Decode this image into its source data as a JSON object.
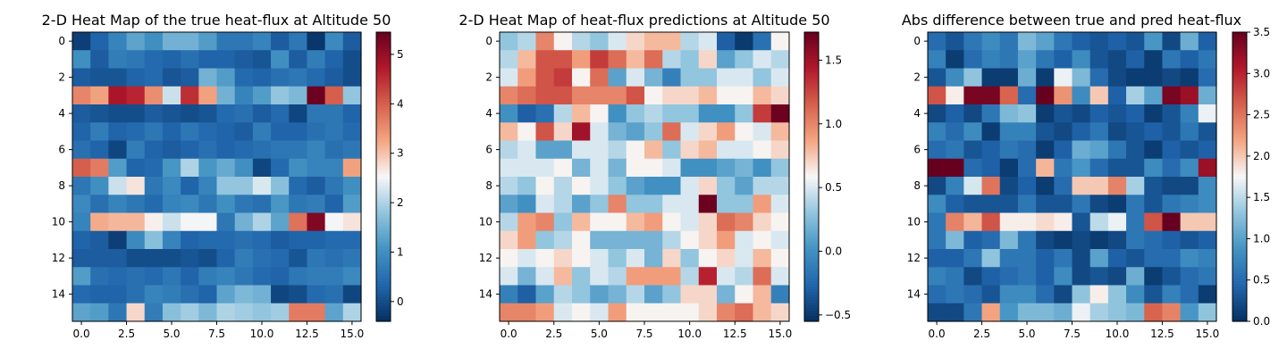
{
  "chart_data": [
    {
      "type": "heatmap",
      "title": "2-D Heat Map of the true heat-flux at Altitude 50",
      "colormap": "RdBu_r",
      "vmin": -0.4,
      "vmax": 5.45,
      "xlim": [
        -0.5,
        15.5
      ],
      "ylim": [
        15.5,
        -0.5
      ],
      "x_ticks": [
        "0.0",
        "2.5",
        "5.0",
        "7.5",
        "10.0",
        "12.5",
        "15.0"
      ],
      "y_ticks": [
        "0",
        "2",
        "4",
        "6",
        "8",
        "10",
        "12",
        "14"
      ],
      "colorbar_ticks": [
        "0",
        "1",
        "2",
        "3",
        "4",
        "5"
      ],
      "values": [
        [
          -0.2,
          0.3,
          0.8,
          1.3,
          1.0,
          1.5,
          1.5,
          1.2,
          0.6,
          0.6,
          0.8,
          0.2,
          0.6,
          -0.3,
          0.9,
          0.2
        ],
        [
          1.0,
          0.2,
          0.7,
          0.6,
          0.4,
          0.3,
          0.5,
          0.3,
          0.3,
          0.2,
          0.1,
          1.0,
          0.2,
          0.7,
          0.3,
          0.0
        ],
        [
          0.2,
          0.1,
          0.1,
          0.3,
          0.4,
          0.1,
          0.2,
          1.5,
          1.2,
          0.4,
          0.3,
          0.5,
          0.6,
          0.4,
          0.2,
          0.0
        ],
        [
          3.6,
          3.3,
          4.8,
          4.6,
          3.5,
          2.2,
          4.5,
          3.3,
          1.5,
          0.8,
          1.2,
          1.8,
          1.6,
          5.4,
          4.0,
          1.8
        ],
        [
          0.2,
          0.1,
          0.0,
          0.0,
          0.2,
          0.1,
          0.0,
          0.1,
          0.4,
          0.5,
          0.2,
          0.4,
          -0.1,
          0.6,
          0.6,
          0.3
        ],
        [
          0.3,
          0.7,
          0.3,
          0.4,
          0.6,
          0.3,
          0.6,
          0.4,
          0.3,
          0.2,
          0.7,
          0.3,
          0.3,
          0.5,
          0.6,
          0.4
        ],
        [
          0.5,
          0.3,
          -0.1,
          0.7,
          0.3,
          0.2,
          0.3,
          0.5,
          0.3,
          0.4,
          0.5,
          0.6,
          0.6,
          0.8,
          0.5,
          0.6
        ],
        [
          4.0,
          3.7,
          1.2,
          0.3,
          0.4,
          1.1,
          2.0,
          1.1,
          1.4,
          1.0,
          -0.1,
          0.4,
          1.0,
          0.8,
          0.8,
          3.3
        ],
        [
          0.6,
          1.0,
          2.2,
          2.7,
          0.6,
          0.9,
          0.3,
          0.8,
          1.8,
          1.8,
          2.3,
          1.7,
          0.4,
          0.2,
          0.6,
          1.0
        ],
        [
          0.9,
          0.5,
          0.8,
          0.6,
          0.4,
          0.8,
          0.9,
          0.6,
          1.0,
          0.6,
          0.5,
          1.1,
          0.6,
          0.7,
          0.3,
          1.2
        ],
        [
          0.8,
          3.2,
          3.1,
          3.1,
          2.6,
          2.2,
          2.5,
          2.5,
          0.6,
          1.5,
          2.0,
          1.3,
          3.8,
          5.2,
          2.5,
          2.7
        ],
        [
          0.3,
          0.2,
          -0.2,
          0.9,
          1.7,
          0.8,
          0.3,
          0.4,
          0.4,
          0.5,
          0.4,
          0.2,
          0.3,
          0.3,
          0.4,
          0.4
        ],
        [
          0.2,
          0.2,
          0.2,
          0.0,
          0.0,
          0.0,
          0.1,
          0.0,
          0.3,
          0.7,
          0.5,
          0.4,
          0.1,
          0.6,
          0.5,
          0.6
        ],
        [
          1.2,
          0.5,
          0.4,
          0.5,
          0.4,
          0.6,
          0.3,
          0.7,
          0.8,
          0.6,
          0.4,
          0.3,
          0.6,
          0.7,
          0.7,
          0.9
        ],
        [
          0.4,
          0.3,
          0.3,
          0.5,
          0.8,
          0.7,
          0.5,
          0.3,
          1.3,
          1.6,
          1.5,
          -0.1,
          0.0,
          0.4,
          0.5,
          -0.1
        ],
        [
          1.3,
          1.2,
          0.6,
          2.8,
          0.7,
          1.7,
          1.9,
          1.6,
          2.0,
          1.9,
          1.8,
          1.9,
          3.7,
          3.7,
          1.3,
          2.0
        ]
      ]
    },
    {
      "type": "heatmap",
      "title": "2-D Heat Map of heat-flux predictions at Altitude 50",
      "colormap": "RdBu_r",
      "vmin": -0.55,
      "vmax": 1.72,
      "xlim": [
        -0.5,
        15.5
      ],
      "ylim": [
        15.5,
        -0.5
      ],
      "x_ticks": [
        "0.0",
        "2.5",
        "5.0",
        "7.5",
        "10.0",
        "12.5",
        "15.0"
      ],
      "y_ticks": [
        "0",
        "2",
        "4",
        "6",
        "8",
        "10",
        "12",
        "14"
      ],
      "colorbar_ticks": [
        "−0.5",
        "0.0",
        "0.5",
        "1.0",
        "1.5"
      ],
      "values": [
        [
          0.3,
          0.4,
          1.0,
          0.6,
          0.4,
          0.3,
          0.5,
          0.7,
          0.8,
          0.8,
          0.4,
          0.5,
          -0.3,
          -0.5,
          -0.2,
          0.6
        ],
        [
          0.4,
          0.8,
          1.2,
          1.2,
          0.9,
          1.3,
          1.1,
          0.8,
          1.1,
          0.4,
          0.3,
          0.7,
          0.1,
          0.3,
          0.5,
          0.4
        ],
        [
          0.5,
          0.9,
          1.2,
          1.3,
          0.6,
          1.1,
          0.1,
          0.5,
          0.2,
          -0.1,
          0.3,
          0.3,
          0.5,
          0.5,
          0.3,
          0.5
        ],
        [
          1.0,
          1.1,
          1.2,
          1.2,
          1.0,
          1.0,
          1.0,
          1.2,
          0.6,
          0.7,
          0.7,
          0.8,
          0.6,
          0.6,
          0.8,
          0.7
        ],
        [
          0.0,
          -0.3,
          -0.2,
          0.4,
          0.8,
          0.6,
          0.0,
          0.3,
          0.4,
          0.3,
          0.3,
          0.0,
          0.0,
          0.3,
          1.3,
          1.7
        ],
        [
          0.8,
          0.6,
          1.2,
          0.7,
          1.5,
          0.5,
          0.2,
          0.1,
          0.3,
          1.1,
          0.5,
          0.7,
          0.9,
          0.6,
          0.5,
          0.8
        ],
        [
          0.4,
          0.5,
          0.1,
          0.1,
          0.5,
          0.5,
          0.4,
          0.6,
          0.8,
          0.3,
          0.7,
          0.8,
          0.5,
          0.5,
          0.6,
          0.7
        ],
        [
          0.5,
          0.5,
          0.5,
          0.6,
          0.2,
          0.5,
          0.2,
          0.6,
          0.6,
          0.5,
          0.0,
          0.0,
          0.1,
          0.2,
          0.0,
          0.3
        ],
        [
          0.4,
          0.3,
          0.6,
          0.4,
          0.6,
          0.5,
          0.3,
          0.1,
          0.0,
          0.0,
          0.5,
          0.7,
          0.3,
          0.1,
          0.4,
          0.4
        ],
        [
          0.1,
          0.0,
          0.5,
          0.4,
          0.1,
          0.3,
          1.0,
          0.3,
          0.3,
          0.5,
          0.5,
          1.7,
          0.3,
          0.3,
          0.9,
          0.5
        ],
        [
          0.4,
          0.9,
          1.0,
          0.3,
          0.8,
          0.6,
          0.6,
          0.8,
          0.9,
          0.6,
          0.5,
          0.7,
          1.1,
          1.0,
          0.7,
          0.6
        ],
        [
          0.7,
          0.9,
          0.3,
          0.4,
          0.6,
          0.2,
          0.2,
          0.2,
          0.2,
          0.4,
          0.6,
          0.7,
          0.9,
          0.5,
          0.6,
          0.5
        ],
        [
          0.6,
          0.5,
          0.6,
          0.7,
          0.6,
          0.5,
          0.3,
          0.5,
          0.2,
          0.7,
          0.3,
          0.6,
          0.7,
          0.5,
          0.8,
          0.6
        ],
        [
          0.5,
          0.2,
          0.5,
          0.8,
          0.3,
          0.5,
          0.4,
          0.9,
          0.9,
          0.9,
          0.4,
          1.4,
          0.5,
          0.4,
          1.1,
          0.5
        ],
        [
          -0.1,
          -0.3,
          0.1,
          0.4,
          0.3,
          0.1,
          0.2,
          0.4,
          0.1,
          0.3,
          0.7,
          0.7,
          0.2,
          0.6,
          0.8,
          -0.1
        ],
        [
          1.0,
          1.0,
          0.9,
          0.5,
          0.6,
          0.5,
          0.9,
          0.6,
          0.6,
          0.6,
          0.6,
          0.7,
          1.0,
          1.1,
          0.8,
          0.7
        ]
      ]
    },
    {
      "type": "heatmap",
      "title": "Abs difference between true and pred heat-flux",
      "colormap": "RdBu_r",
      "vmin": 0.0,
      "vmax": 3.5,
      "xlim": [
        -0.5,
        15.5
      ],
      "ylim": [
        15.5,
        -0.5
      ],
      "x_ticks": [
        "0.0",
        "2.5",
        "5.0",
        "7.5",
        "10.0",
        "12.5",
        "15.0"
      ],
      "y_ticks": [
        "0",
        "2",
        "4",
        "6",
        "8",
        "10",
        "12",
        "14"
      ],
      "colorbar_ticks": [
        "0.0",
        "0.5",
        "1.0",
        "1.5",
        "2.0",
        "2.5",
        "3.0",
        "3.5"
      ],
      "values": [
        [
          0.5,
          0.3,
          0.6,
          0.8,
          0.6,
          1.2,
          1.0,
          0.6,
          0.4,
          0.3,
          0.4,
          0.3,
          0.9,
          0.2,
          1.1,
          0.4
        ],
        [
          0.7,
          0.1,
          0.5,
          0.7,
          0.6,
          1.0,
          0.6,
          0.4,
          0.8,
          0.3,
          0.2,
          0.4,
          0.1,
          0.6,
          0.4,
          0.6
        ],
        [
          0.3,
          0.8,
          1.3,
          0.1,
          0.1,
          1.1,
          0.1,
          1.7,
          1.2,
          0.5,
          0.2,
          0.1,
          0.1,
          0.2,
          0.1,
          0.5
        ],
        [
          2.7,
          1.8,
          3.4,
          3.4,
          2.6,
          0.5,
          3.5,
          2.3,
          0.8,
          2.0,
          0.4,
          1.4,
          1.0,
          3.4,
          3.2,
          1.1
        ],
        [
          0.2,
          0.4,
          0.2,
          0.6,
          1.2,
          1.3,
          0.1,
          0.3,
          0.2,
          0.4,
          0.3,
          0.4,
          0.1,
          0.3,
          0.7,
          1.7
        ],
        [
          0.7,
          0.5,
          0.8,
          0.1,
          0.7,
          0.7,
          0.3,
          0.2,
          0.4,
          0.6,
          0.2,
          0.3,
          0.4,
          0.3,
          0.6,
          0.3
        ],
        [
          0.5,
          0.6,
          0.3,
          0.4,
          0.6,
          0.5,
          0.1,
          0.4,
          1.1,
          1.0,
          0.6,
          0.3,
          0.1,
          0.4,
          0.3,
          0.4
        ],
        [
          3.5,
          3.5,
          0.5,
          0.4,
          0.1,
          0.5,
          2.1,
          0.6,
          0.9,
          0.5,
          0.3,
          0.3,
          0.8,
          0.5,
          0.8,
          3.2
        ],
        [
          0.2,
          0.7,
          1.6,
          2.5,
          0.2,
          0.4,
          0.1,
          0.5,
          2.0,
          2.0,
          2.4,
          1.4,
          0.3,
          0.2,
          0.2,
          0.8
        ],
        [
          0.8,
          0.4,
          0.3,
          0.3,
          0.3,
          0.6,
          0.3,
          0.3,
          0.6,
          0.2,
          0.1,
          0.6,
          0.3,
          0.6,
          0.7,
          0.8
        ],
        [
          0.6,
          2.4,
          2.1,
          2.7,
          1.8,
          1.8,
          1.9,
          1.8,
          0.3,
          1.5,
          1.7,
          0.6,
          2.7,
          3.5,
          2.0,
          2.0
        ],
        [
          0.6,
          1.2,
          0.4,
          0.5,
          1.2,
          0.6,
          0.2,
          0.1,
          0.2,
          0.1,
          0.2,
          0.6,
          0.5,
          0.4,
          0.3,
          0.4
        ],
        [
          0.4,
          0.4,
          0.6,
          1.3,
          0.6,
          0.6,
          0.4,
          0.6,
          0.2,
          1.0,
          0.4,
          0.3,
          0.5,
          0.5,
          0.8,
          0.7
        ],
        [
          0.7,
          0.6,
          0.2,
          0.4,
          0.5,
          0.6,
          0.4,
          0.8,
          0.2,
          0.3,
          0.2,
          1.1,
          0.1,
          0.3,
          0.5,
          0.6
        ],
        [
          0.5,
          0.6,
          0.5,
          0.3,
          0.8,
          0.8,
          0.5,
          0.2,
          1.3,
          1.8,
          1.3,
          0.8,
          0.3,
          0.7,
          0.5,
          0.1
        ],
        [
          0.2,
          0.2,
          0.6,
          2.2,
          0.9,
          1.2,
          1.2,
          1.1,
          1.7,
          1.4,
          1.3,
          1.2,
          2.6,
          2.4,
          0.9,
          1.3
        ]
      ]
    }
  ]
}
